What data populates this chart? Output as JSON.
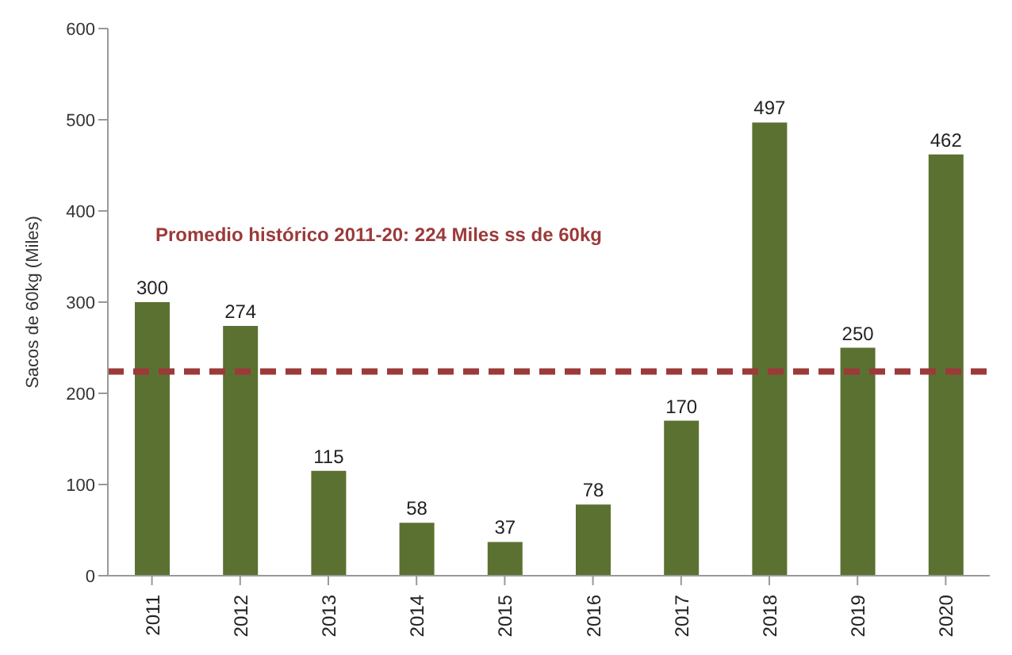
{
  "chart_data": {
    "type": "bar",
    "ylabel": "Sacos de 60kg (Miles)",
    "categories": [
      "2011",
      "2012",
      "2013",
      "2014",
      "2015",
      "2016",
      "2017",
      "2018",
      "2019",
      "2020"
    ],
    "values": [
      300,
      274,
      115,
      58,
      37,
      78,
      170,
      497,
      250,
      462
    ],
    "color": "#5b7131",
    "ylim": [
      0,
      600
    ],
    "yticks": [
      0,
      100,
      200,
      300,
      400,
      500,
      600
    ],
    "grid": false,
    "data_labels": true,
    "ref_lines": [
      {
        "axis": "y",
        "value": 224,
        "label": "Promedio histórico 2011-20: 224 Miles ss de 60kg",
        "color": "#9c3a3a",
        "line_style": "dashed"
      }
    ]
  }
}
